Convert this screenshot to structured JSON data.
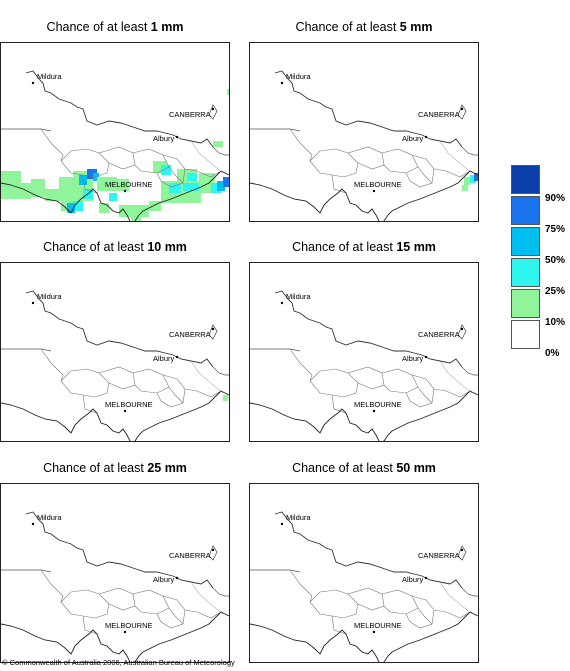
{
  "panels": [
    {
      "title_prefix": "Chance of at least ",
      "amount": "1 mm"
    },
    {
      "title_prefix": "Chance of at least ",
      "amount": "5 mm"
    },
    {
      "title_prefix": "Chance of at least ",
      "amount": "10 mm"
    },
    {
      "title_prefix": "Chance of at least ",
      "amount": "15 mm"
    },
    {
      "title_prefix": "Chance of at least ",
      "amount": "25 mm"
    },
    {
      "title_prefix": "Chance of at least ",
      "amount": "50 mm"
    }
  ],
  "cities": {
    "mildura": "Mildura",
    "canberra": "CANBERRA",
    "albury": "Albury",
    "melbourne": "MELBOURNE"
  },
  "legend": [
    {
      "label": "90%",
      "color": "#0a3ea8"
    },
    {
      "label": "75%",
      "color": "#1a72ef"
    },
    {
      "label": "50%",
      "color": "#00bff0"
    },
    {
      "label": "25%",
      "color": "#2ff5ef"
    },
    {
      "label": "10%",
      "color": "#90f59a"
    },
    {
      "label": "0%",
      "color": "#ffffff"
    }
  ],
  "copyright": "© Commonwealth of Australia 2006, Australian Bureau of Meteorology"
}
